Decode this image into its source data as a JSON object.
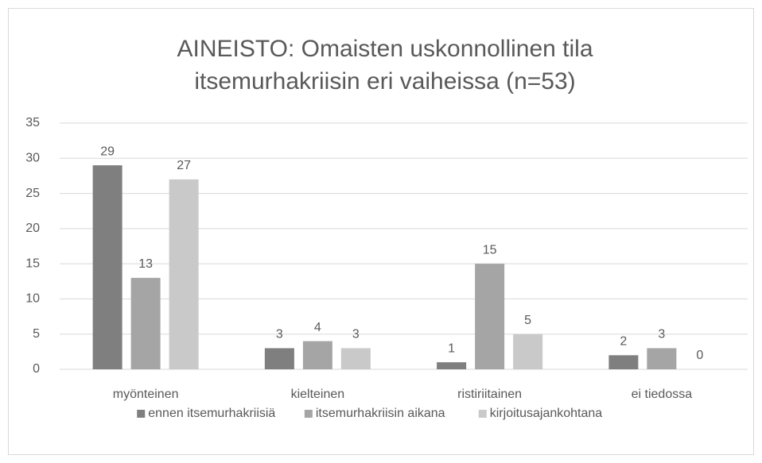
{
  "chart_data": {
    "type": "bar",
    "title": [
      "AINEISTO: Omaisten uskonnollinen tila",
      "itsemurhakriisin eri vaiheissa (n=53)"
    ],
    "categories": [
      "myönteinen",
      "kielteinen",
      "ristiriitainen",
      "ei tiedossa"
    ],
    "series": [
      {
        "name": "ennen itsemurhakriisiä",
        "color": "#7f7f7f",
        "values": [
          29,
          3,
          1,
          2
        ]
      },
      {
        "name": "itsemurhakriisin aikana",
        "color": "#a5a5a5",
        "values": [
          13,
          4,
          15,
          3
        ]
      },
      {
        "name": "kirjoitusajankohtana",
        "color": "#c9c9c9",
        "values": [
          27,
          3,
          5,
          0
        ]
      }
    ],
    "ylim": [
      0,
      35
    ],
    "yticks": [
      0,
      5,
      10,
      15,
      20,
      25,
      30,
      35
    ],
    "grid": true,
    "legend": "bottom"
  }
}
